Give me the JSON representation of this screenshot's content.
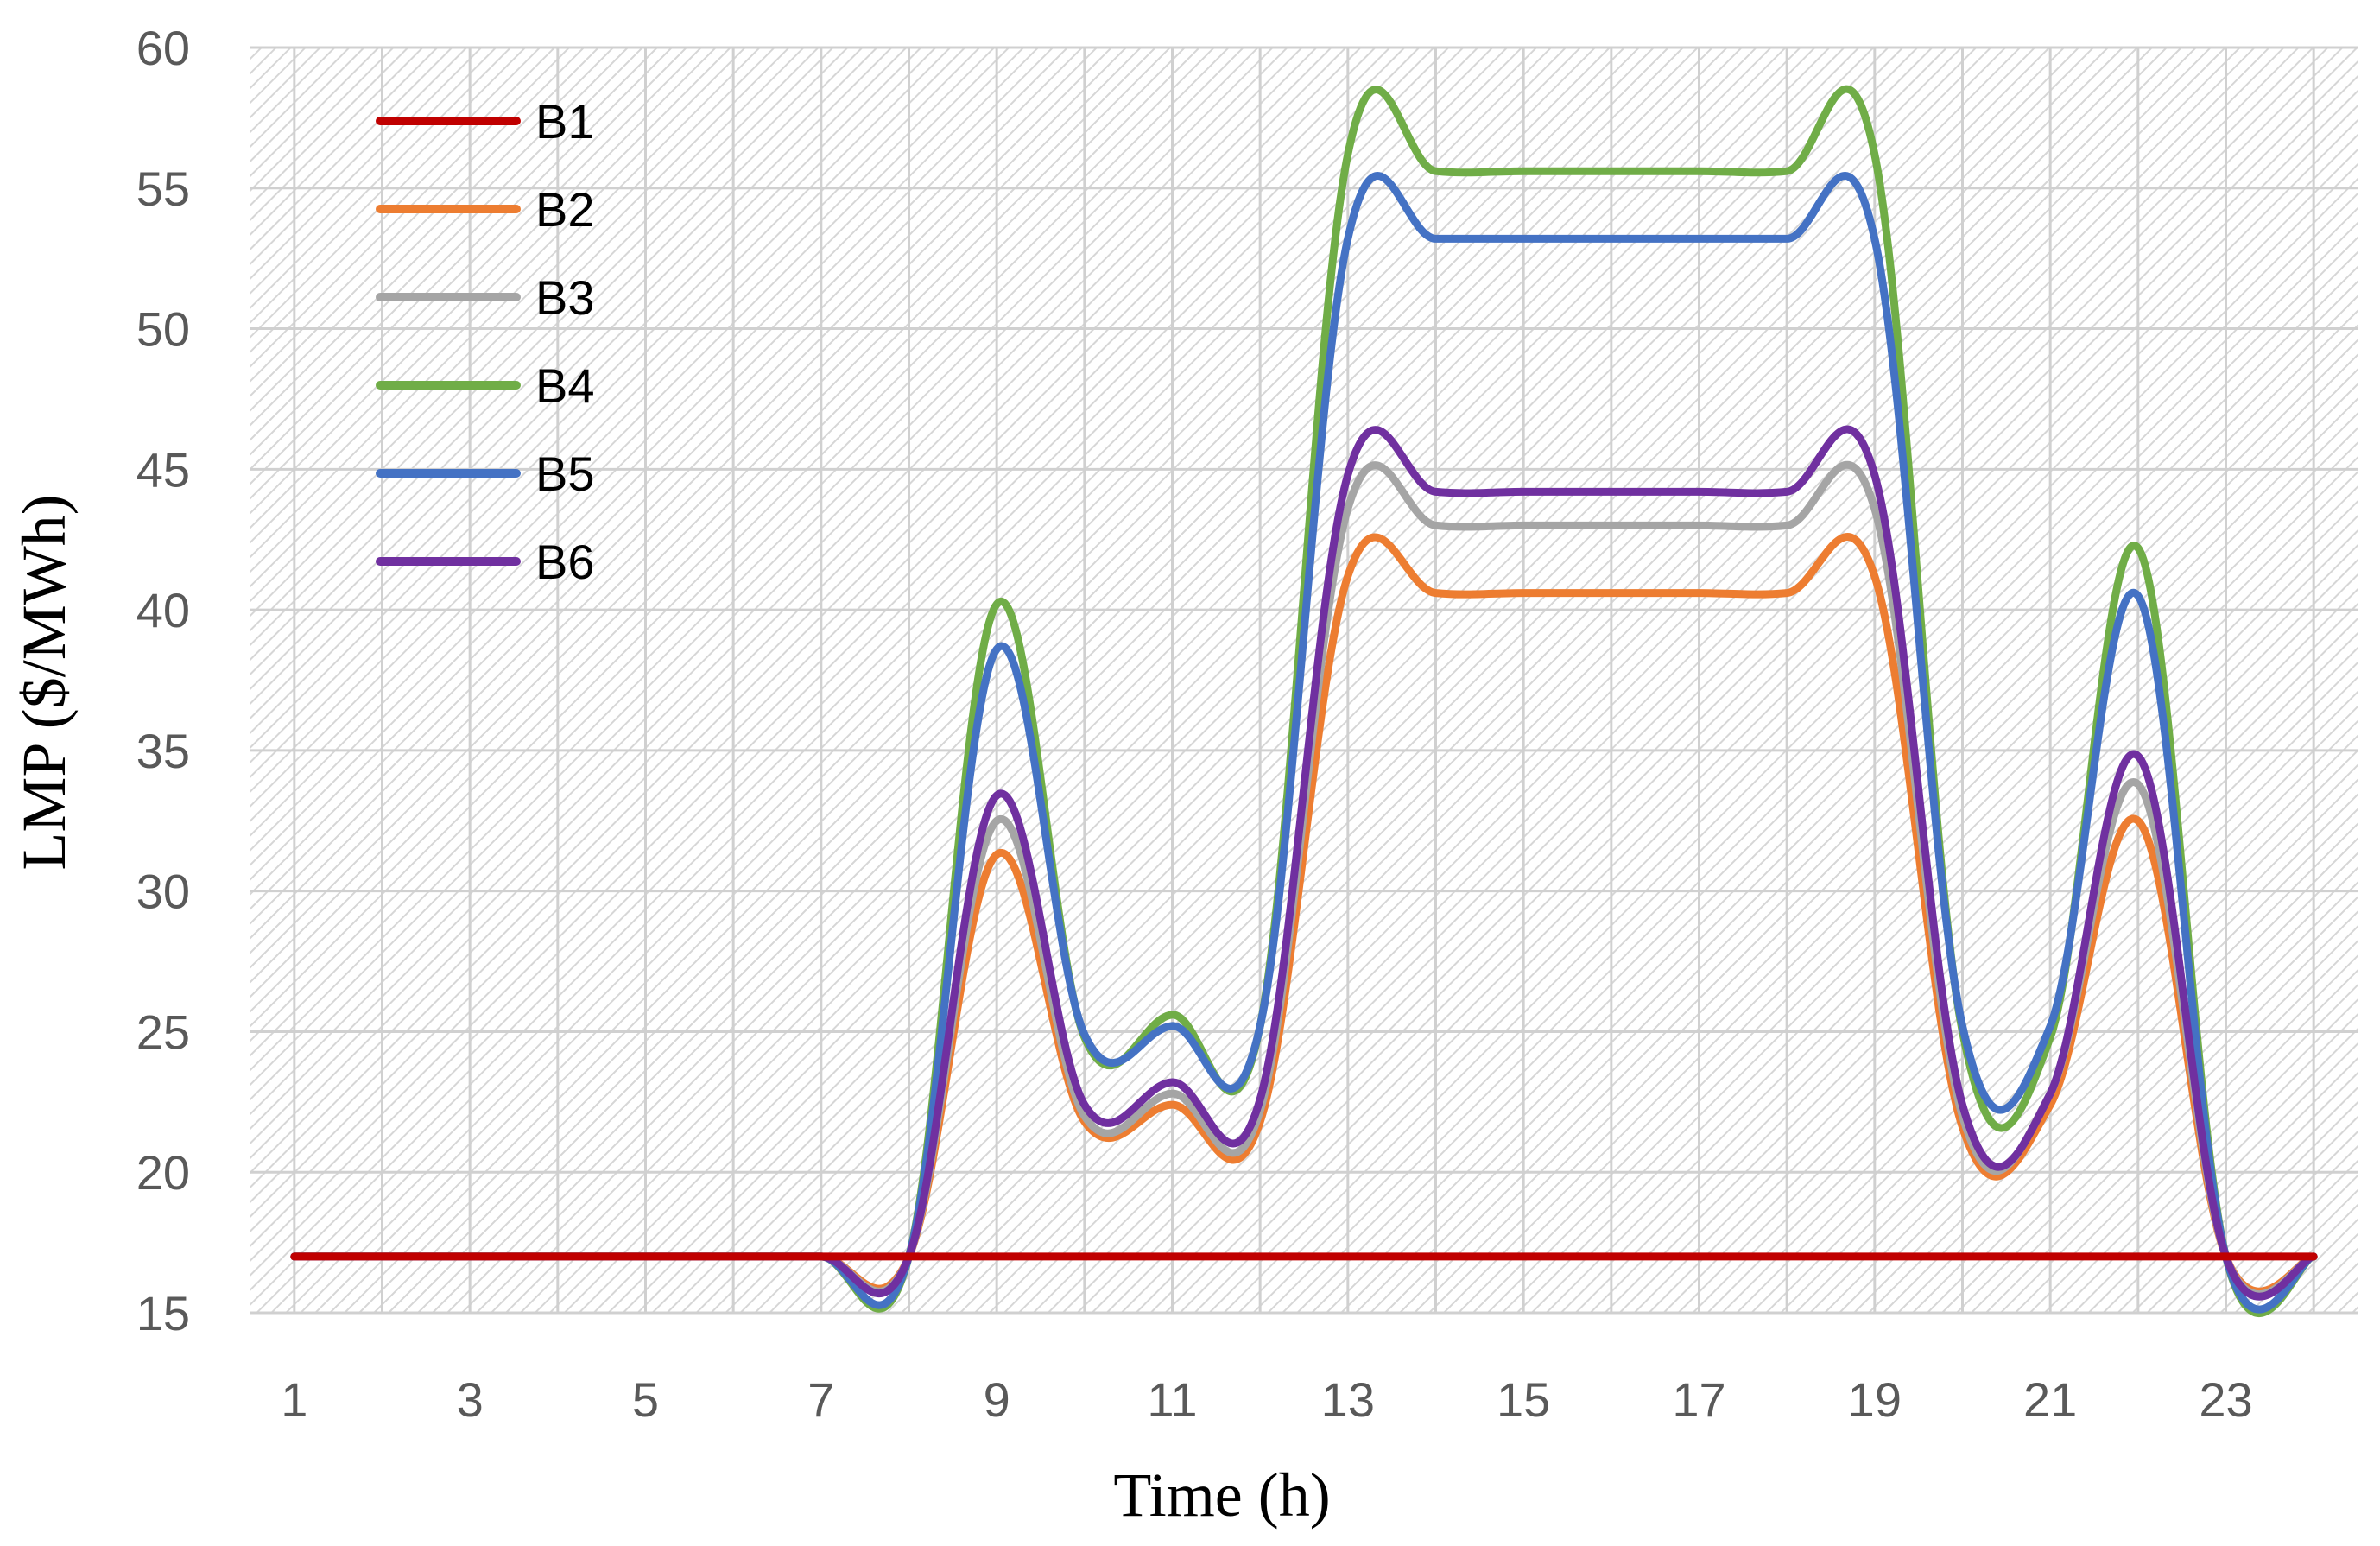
{
  "chart_data": {
    "type": "line",
    "title": "",
    "xlabel": "Time (h)",
    "ylabel": "LMP ($/MWh)",
    "x": [
      1,
      2,
      3,
      4,
      5,
      6,
      7,
      8,
      9,
      10,
      11,
      12,
      13,
      14,
      15,
      16,
      17,
      18,
      19,
      20,
      21,
      22,
      23,
      24
    ],
    "x_tick_labels": [
      "1",
      "3",
      "5",
      "7",
      "9",
      "11",
      "13",
      "15",
      "17",
      "19",
      "21",
      "23"
    ],
    "x_tick_values": [
      1,
      3,
      5,
      7,
      9,
      11,
      13,
      15,
      17,
      19,
      21,
      23
    ],
    "xlim": [
      0.5,
      24.5
    ],
    "ylim": [
      15,
      60
    ],
    "y_ticks": [
      15,
      20,
      25,
      30,
      35,
      40,
      45,
      50,
      55,
      60
    ],
    "grid": true,
    "legend_position": "top-left",
    "series": [
      {
        "name": "B1",
        "color": "#c00000",
        "values": [
          17,
          17,
          17,
          17,
          17,
          17,
          17,
          17,
          17,
          17,
          17,
          17,
          17,
          17,
          17,
          17,
          17,
          17,
          17,
          17,
          17,
          17,
          17,
          17
        ]
      },
      {
        "name": "B2",
        "color": "#ed7d31",
        "values": [
          17,
          17,
          17,
          17,
          17,
          17,
          17,
          17,
          31.3,
          21.8,
          22.4,
          21.8,
          41.2,
          40.6,
          40.6,
          40.6,
          40.6,
          40.6,
          41.2,
          21.6,
          22.4,
          32.5,
          17,
          17
        ]
      },
      {
        "name": "B3",
        "color": "#a5a5a5",
        "values": [
          17,
          17,
          17,
          17,
          17,
          17,
          17,
          17,
          32.5,
          22,
          22.8,
          22.2,
          43.6,
          43,
          43,
          43,
          43,
          43,
          43.6,
          22,
          22.8,
          33.8,
          17,
          17
        ]
      },
      {
        "name": "B4",
        "color": "#70ad47",
        "values": [
          17,
          17,
          17,
          17,
          17,
          17,
          17,
          17,
          40.2,
          24.8,
          25.6,
          25.2,
          56.2,
          55.6,
          55.6,
          55.6,
          55.6,
          55.6,
          56.2,
          25,
          24.8,
          42.2,
          17,
          17
        ]
      },
      {
        "name": "B5",
        "color": "#4472c4",
        "values": [
          17,
          17,
          17,
          17,
          17,
          17,
          17,
          17,
          38.6,
          24.9,
          25.2,
          25.2,
          53.2,
          53.2,
          53.2,
          53.2,
          53.2,
          53.2,
          53.2,
          25.2,
          25.2,
          40.5,
          17,
          17
        ]
      },
      {
        "name": "B6",
        "color": "#7030a0",
        "values": [
          17,
          17,
          17,
          17,
          17,
          17,
          17,
          17,
          33.4,
          22.4,
          23.2,
          22.6,
          44.8,
          44.2,
          44.2,
          44.2,
          44.2,
          44.2,
          44.8,
          22.4,
          22.8,
          34.8,
          17,
          17
        ]
      }
    ]
  }
}
